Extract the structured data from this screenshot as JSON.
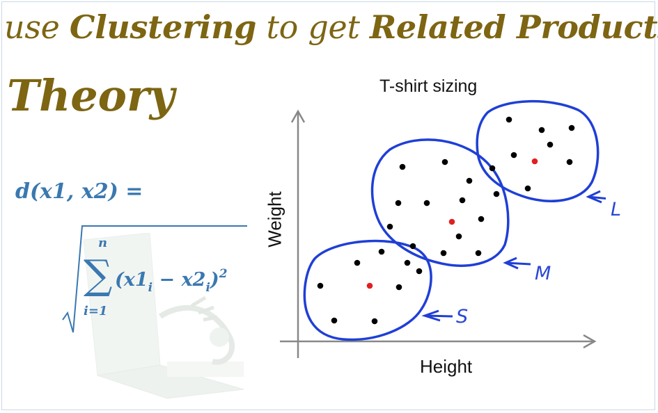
{
  "slide": {
    "title_use": "use",
    "title_clustering": "Clustering",
    "title_to_get": "to get",
    "title_related": "Related Products",
    "subtitle": "Theory"
  },
  "formula": {
    "lhs": "d(x1, x2) =",
    "sum_top": "n",
    "sum_bottom": "i=1",
    "body": "(x1",
    "sub_i": "i",
    "minus": " − x2",
    "close": ")",
    "exp": "2"
  },
  "chart_data": {
    "type": "scatter",
    "title": "T-shirt sizing",
    "xlabel": "Height",
    "ylabel": "Weight",
    "grid": false,
    "clusters": [
      {
        "name": "S",
        "points": [
          [
            460,
            411
          ],
          [
            513,
            378
          ],
          [
            548,
            362
          ],
          [
            585,
            378
          ],
          [
            602,
            390
          ],
          [
            573,
            413
          ],
          [
            480,
            461
          ],
          [
            538,
            462
          ]
        ],
        "centroid": [
          531,
          411
        ]
      },
      {
        "name": "M",
        "points": [
          [
            578,
            240
          ],
          [
            639,
            233
          ],
          [
            674,
            260
          ],
          [
            713,
            279
          ],
          [
            572,
            292
          ],
          [
            613,
            292
          ],
          [
            664,
            288
          ],
          [
            691,
            315
          ],
          [
            560,
            326
          ],
          [
            659,
            340
          ],
          [
            593,
            354
          ],
          [
            637,
            364
          ],
          [
            687,
            364
          ]
        ],
        "centroid": [
          649,
          319
        ]
      },
      {
        "name": "L",
        "points": [
          [
            731,
            172
          ],
          [
            778,
            187
          ],
          [
            821,
            184
          ],
          [
            790,
            208
          ],
          [
            738,
            223
          ],
          [
            818,
            233
          ],
          [
            707,
            242
          ],
          [
            758,
            271
          ]
        ],
        "centroid": [
          768,
          232
        ]
      }
    ],
    "annotations": [
      "S",
      "M",
      "L"
    ],
    "colors": {
      "points": "#000000",
      "centroid": "#e02020",
      "ellipse": "#1f3fd6",
      "axis": "#888888"
    }
  }
}
